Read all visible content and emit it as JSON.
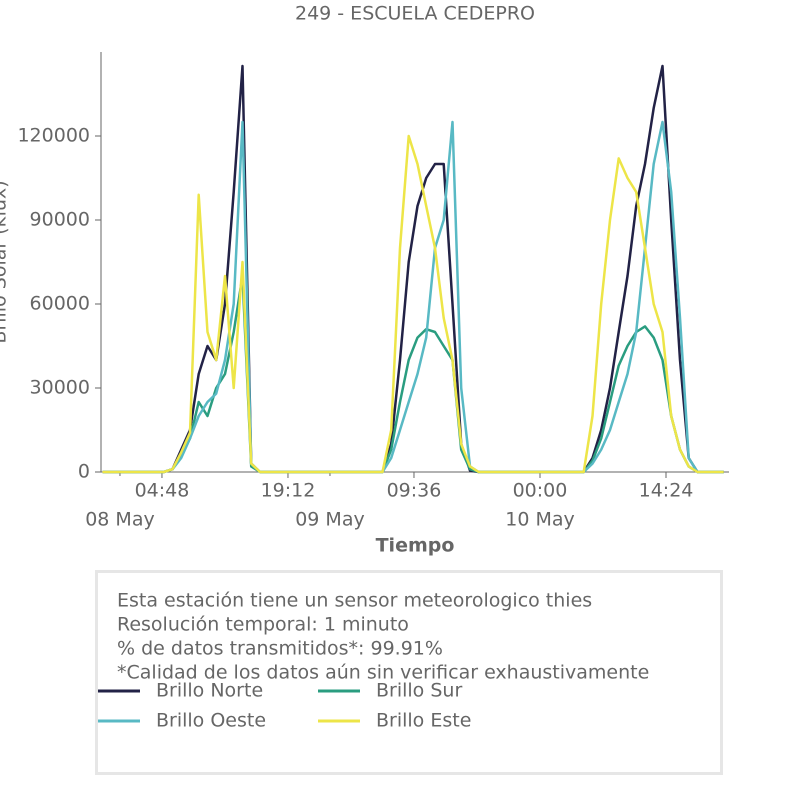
{
  "chart_data": {
    "type": "line",
    "title": "249 - ESCUELA CEDEPRO",
    "x_label": "Tiempo",
    "y_label": "Brillo Solar (klux)",
    "x": [
      "07 May 22:00",
      "07 May 23:00",
      "08 May 00:00",
      "08 May 01:00",
      "08 May 02:00",
      "08 May 03:00",
      "08 May 04:00",
      "08 May 05:00",
      "08 May 06:00",
      "08 May 07:00",
      "08 May 08:00",
      "08 May 09:00",
      "08 May 10:00",
      "08 May 11:00",
      "08 May 12:00",
      "08 May 13:00",
      "08 May 14:00",
      "08 May 15:00",
      "08 May 16:00",
      "08 May 17:00",
      "08 May 18:00",
      "08 May 19:00",
      "08 May 20:00",
      "08 May 21:00",
      "08 May 22:00",
      "08 May 23:00",
      "09 May 00:00",
      "09 May 01:00",
      "09 May 02:00",
      "09 May 03:00",
      "09 May 04:00",
      "09 May 05:00",
      "09 May 06:00",
      "09 May 07:00",
      "09 May 08:00",
      "09 May 09:00",
      "09 May 10:00",
      "09 May 11:00",
      "09 May 12:00",
      "09 May 13:00",
      "09 May 14:00",
      "09 May 15:00",
      "09 May 16:00",
      "09 May 17:00",
      "09 May 18:00",
      "09 May 19:00",
      "09 May 20:00",
      "09 May 21:00",
      "09 May 22:00",
      "09 May 23:00",
      "10 May 00:00",
      "10 May 01:00",
      "10 May 02:00",
      "10 May 03:00",
      "10 May 04:00",
      "10 May 05:00",
      "10 May 06:00",
      "10 May 07:00",
      "10 May 08:00",
      "10 May 09:00",
      "10 May 10:00",
      "10 May 11:00",
      "10 May 12:00",
      "10 May 13:00",
      "10 May 14:00",
      "10 May 15:00",
      "10 May 16:00",
      "10 May 17:00",
      "10 May 18:00",
      "10 May 19:00",
      "10 May 20:00",
      "10 May 21:00"
    ],
    "series": [
      {
        "name": "Brillo Norte",
        "color": "#222246",
        "values": [
          0,
          0,
          0,
          0,
          0,
          0,
          0,
          0,
          1000,
          8000,
          15000,
          35000,
          45000,
          40000,
          60000,
          100000,
          145000,
          3000,
          0,
          0,
          0,
          0,
          0,
          0,
          0,
          0,
          0,
          0,
          0,
          0,
          0,
          0,
          0,
          10000,
          40000,
          75000,
          95000,
          105000,
          110000,
          110000,
          60000,
          10000,
          500,
          0,
          0,
          0,
          0,
          0,
          0,
          0,
          0,
          0,
          0,
          0,
          0,
          0,
          5000,
          15000,
          30000,
          50000,
          70000,
          95000,
          110000,
          130000,
          145000,
          90000,
          40000,
          5000,
          0,
          0,
          0,
          0
        ]
      },
      {
        "name": "Brillo Sur",
        "color": "#2a9d80",
        "values": [
          0,
          0,
          0,
          0,
          0,
          0,
          0,
          0,
          1000,
          6000,
          12000,
          25000,
          20000,
          30000,
          35000,
          50000,
          70000,
          2000,
          0,
          0,
          0,
          0,
          0,
          0,
          0,
          0,
          0,
          0,
          0,
          0,
          0,
          0,
          0,
          8000,
          25000,
          40000,
          48000,
          51000,
          50000,
          45000,
          40000,
          8000,
          1000,
          0,
          0,
          0,
          0,
          0,
          0,
          0,
          0,
          0,
          0,
          0,
          0,
          0,
          4000,
          12000,
          25000,
          38000,
          45000,
          50000,
          52000,
          48000,
          40000,
          20000,
          8000,
          2000,
          0,
          0,
          0,
          0
        ]
      },
      {
        "name": "Brillo Oeste",
        "color": "#58b9c4",
        "values": [
          0,
          0,
          0,
          0,
          0,
          0,
          0,
          0,
          1000,
          5000,
          12000,
          20000,
          25000,
          28000,
          40000,
          60000,
          125000,
          3000,
          0,
          0,
          0,
          0,
          0,
          0,
          0,
          0,
          0,
          0,
          0,
          0,
          0,
          0,
          0,
          5000,
          15000,
          25000,
          35000,
          48000,
          80000,
          90000,
          125000,
          30000,
          2000,
          0,
          0,
          0,
          0,
          0,
          0,
          0,
          0,
          0,
          0,
          0,
          0,
          0,
          3000,
          8000,
          15000,
          25000,
          35000,
          50000,
          80000,
          110000,
          125000,
          100000,
          55000,
          5000,
          0,
          0,
          0,
          0
        ]
      },
      {
        "name": "Brillo Este",
        "color": "#ede548",
        "values": [
          0,
          0,
          0,
          0,
          0,
          0,
          0,
          0,
          1000,
          7000,
          14000,
          99000,
          50000,
          40000,
          70000,
          30000,
          75000,
          3000,
          0,
          0,
          0,
          0,
          0,
          0,
          0,
          0,
          0,
          0,
          0,
          0,
          0,
          0,
          0,
          15000,
          80000,
          120000,
          110000,
          95000,
          80000,
          55000,
          40000,
          10000,
          2000,
          0,
          0,
          0,
          0,
          0,
          0,
          0,
          0,
          0,
          0,
          0,
          0,
          0,
          20000,
          60000,
          90000,
          112000,
          105000,
          100000,
          80000,
          60000,
          50000,
          20000,
          8000,
          2000,
          0,
          0,
          0,
          0
        ]
      }
    ],
    "xlim": [
      "07 May 21:50",
      "10 May 21:36"
    ],
    "xticks": [
      {
        "value": "08 May 04:48",
        "label": "04:48"
      },
      {
        "value": "08 May 19:12",
        "label": "19:12"
      },
      {
        "value": "09 May 09:36",
        "label": "09:36"
      },
      {
        "value": "10 May 00:00",
        "label": "00:00"
      },
      {
        "value": "10 May 14:24",
        "label": "14:24"
      }
    ],
    "xticks_minor": [
      {
        "value": "08 May 00:00",
        "label": "08 May"
      },
      {
        "value": "09 May 00:00",
        "label": "09 May"
      },
      {
        "value": "10 May 00:00",
        "label": "10 May"
      }
    ],
    "ylim": [
      0,
      150000
    ],
    "yticks": [
      0,
      30000,
      60000,
      90000,
      120000
    ],
    "grid": false,
    "info": [
      "Esta estación tiene un sensor meteorologico thies",
      "Resolución temporal: 1 minuto",
      "% de datos transmitidos*: 99.91%",
      "*Calidad de los datos aún sin verificar exhaustivamente"
    ]
  }
}
